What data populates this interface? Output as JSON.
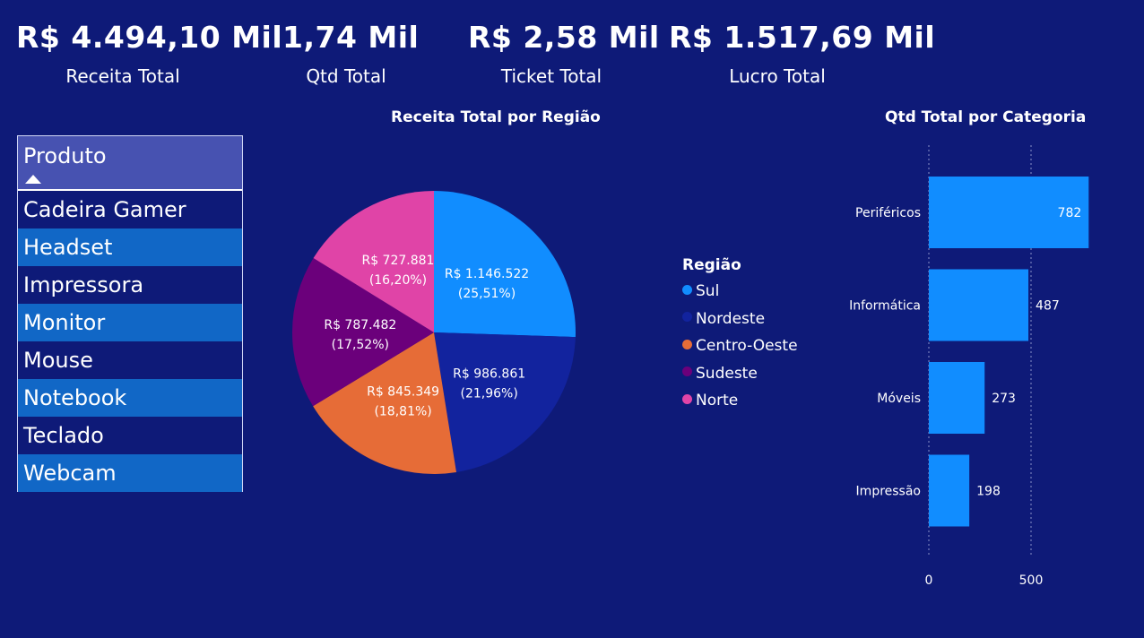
{
  "kpis": [
    {
      "value": "R$ 4.494,10 Mil",
      "label": "Receita Total"
    },
    {
      "value": "1,74 Mil",
      "label": "Qtd Total"
    },
    {
      "value": "R$ 2,58 Mil",
      "label": "Ticket Total"
    },
    {
      "value": "R$ 1.517,69 Mil",
      "label": "Lucro Total"
    }
  ],
  "slicer": {
    "title": "Produto",
    "items": [
      "Cadeira Gamer",
      "Headset",
      "Impressora",
      "Monitor",
      "Mouse",
      "Notebook",
      "Teclado",
      "Webcam"
    ]
  },
  "pie": {
    "title": "Receita Total por Região",
    "legend_title": "Região"
  },
  "bar": {
    "title": "Qtd Total por Categoria"
  },
  "chart_data": [
    {
      "type": "pie",
      "title": "Receita Total por Região",
      "legend_title": "Região",
      "slices": [
        {
          "name": "Sul",
          "value": 1146522,
          "label": "R$ 1.146.522",
          "pct": "(25,51%)",
          "color": "#118dff"
        },
        {
          "name": "Nordeste",
          "value": 986861,
          "label": "R$ 986.861",
          "pct": "(21,96%)",
          "color": "#12239e"
        },
        {
          "name": "Centro-Oeste",
          "value": 845349,
          "label": "R$ 845.349",
          "pct": "(18,81%)",
          "color": "#e66c37"
        },
        {
          "name": "Sudeste",
          "value": 787482,
          "label": "R$ 787.482",
          "pct": "(17,52%)",
          "color": "#6b007b"
        },
        {
          "name": "Norte",
          "value": 727881,
          "label": "R$ 727.881",
          "pct": "(16,20%)",
          "color": "#e044a7"
        }
      ]
    },
    {
      "type": "bar",
      "orientation": "horizontal",
      "title": "Qtd Total por Categoria",
      "categories": [
        "Periféricos",
        "Informática",
        "Móveis",
        "Impressão"
      ],
      "values": [
        782,
        487,
        273,
        198
      ],
      "xticks": [
        0,
        500
      ],
      "xlim": [
        0,
        782
      ],
      "grid": true,
      "color": "#118dff"
    }
  ]
}
